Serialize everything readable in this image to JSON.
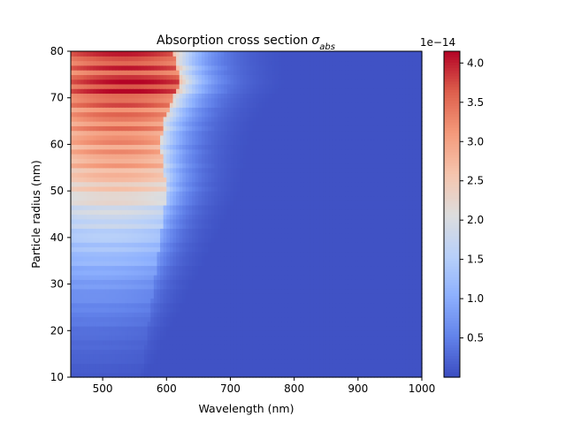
{
  "chart_data": {
    "type": "heatmap",
    "title": "Absorption cross section",
    "title_math": {
      "base": "σ",
      "subscript": "abs"
    },
    "xlabel": "Wavelength (nm)",
    "ylabel": "Particle radius (nm)",
    "xlim": [
      450,
      1000
    ],
    "ylim": [
      10,
      80
    ],
    "xticks": [
      500,
      600,
      700,
      800,
      900,
      1000
    ],
    "yticks": [
      10,
      20,
      30,
      40,
      50,
      60,
      70,
      80
    ],
    "colormap": "coolwarm",
    "colorbar": {
      "multiplier": "1e−14",
      "range": [
        0.0,
        4.15
      ],
      "ticks": [
        0.5,
        1.0,
        1.5,
        2.0,
        2.5,
        3.0,
        3.5,
        4.0
      ],
      "tick_labels": [
        "0.5",
        "1.0",
        "1.5",
        "2.0",
        "2.5",
        "3.0",
        "3.5",
        "4.0"
      ]
    },
    "radius_profile": {
      "radius": [
        10,
        20,
        30,
        40,
        45,
        50,
        55,
        60,
        65,
        70,
        73,
        75,
        80
      ],
      "peak_value": [
        0.12,
        0.35,
        0.8,
        1.5,
        1.85,
        2.4,
        2.9,
        3.15,
        3.35,
        3.6,
        4.1,
        3.7,
        3.8
      ],
      "peak_wavelength": [
        470,
        480,
        490,
        505,
        510,
        520,
        525,
        525,
        530,
        530,
        545,
        540,
        530
      ],
      "cutoff_wavelength": [
        560,
        570,
        580,
        590,
        595,
        600,
        595,
        590,
        595,
        610,
        620,
        620,
        610
      ]
    },
    "baseline_value": 0.06,
    "grid": false
  },
  "colors": {
    "background": "#ffffff",
    "axes_edge": "#000000"
  }
}
